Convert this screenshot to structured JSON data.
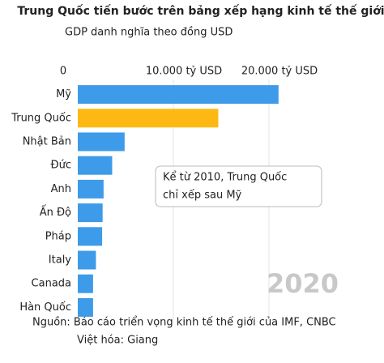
{
  "chart_data": {
    "type": "barh",
    "title": "Trung Quốc tiến bước trên bảng xếp hạng kinh tế thế giới",
    "subtitle": "GDP danh nghĩa theo đồng USD",
    "categories": [
      "Mỹ",
      "Trung Quốc",
      "Nhật Bản",
      "Đức",
      "Anh",
      "Ấn Độ",
      "Pháp",
      "Italy",
      "Canada",
      "Hàn Quốc"
    ],
    "values": [
      21000,
      14700,
      4900,
      3600,
      2700,
      2600,
      2550,
      1900,
      1600,
      1600
    ],
    "colors": [
      "#3d9be9",
      "#fdb913",
      "#3d9be9",
      "#3d9be9",
      "#3d9be9",
      "#3d9be9",
      "#3d9be9",
      "#3d9be9",
      "#3d9be9",
      "#3d9be9"
    ],
    "xlim": [
      0,
      25000
    ],
    "xticks": [
      0,
      {
        "value": 10000,
        "label": "10.000 tỷ USD"
      },
      {
        "value": 20000,
        "label": "20.000 tỷ USD"
      }
    ],
    "grid": true,
    "annotation": [
      "Kể từ 2010, Trung Quốc",
      "chỉ xếp sau Mỹ"
    ],
    "year": "2020",
    "source": [
      "Nguồn: Báo cáo triển vọng kinh tế thế giới của IMF, CNBC",
      "Việt hóa: Giang"
    ]
  }
}
